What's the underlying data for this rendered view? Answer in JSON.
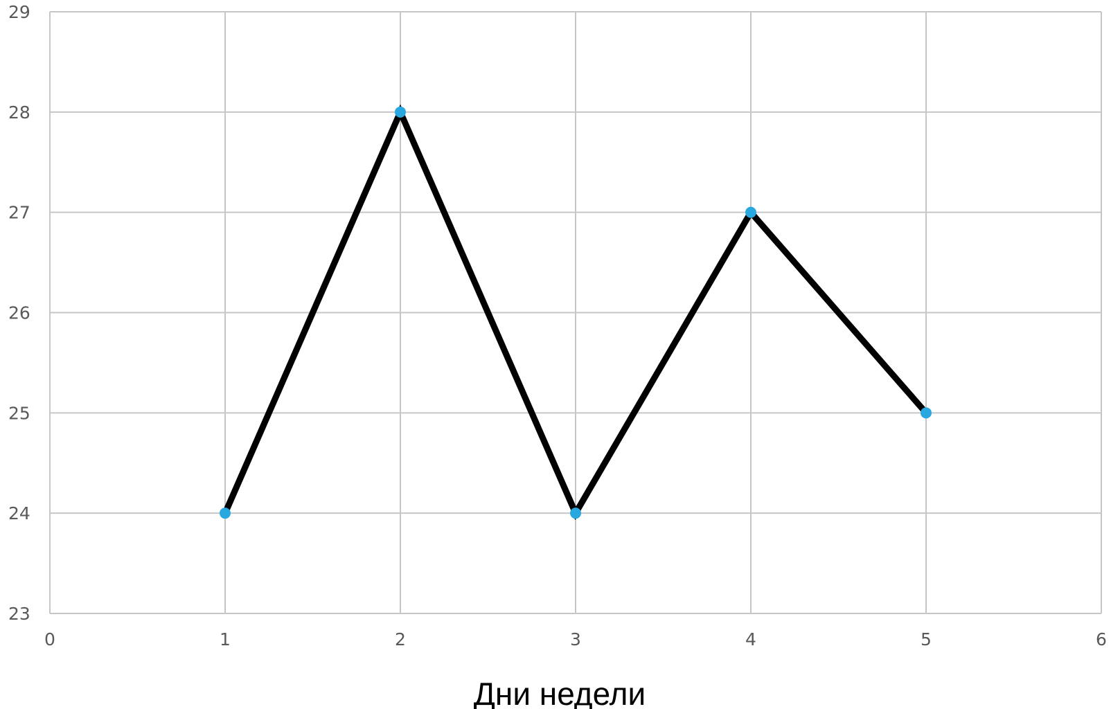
{
  "chart_data": {
    "type": "scatter",
    "mode": "lines+markers",
    "xlabel": "Дни недели",
    "ylabel": "",
    "xlim": [
      0,
      6
    ],
    "ylim": [
      23,
      29
    ],
    "x_ticks": [
      "0",
      "1",
      "2",
      "3",
      "4",
      "5",
      "6"
    ],
    "y_ticks": [
      "23",
      "24",
      "25",
      "26",
      "27",
      "28",
      "29"
    ],
    "grid": true,
    "legend": "none",
    "series": [
      {
        "x": [
          1,
          2,
          3,
          4,
          5
        ],
        "y": [
          24,
          28,
          24,
          27,
          25
        ],
        "line_color": "#000000",
        "marker_color": "#29a8e0"
      }
    ]
  }
}
